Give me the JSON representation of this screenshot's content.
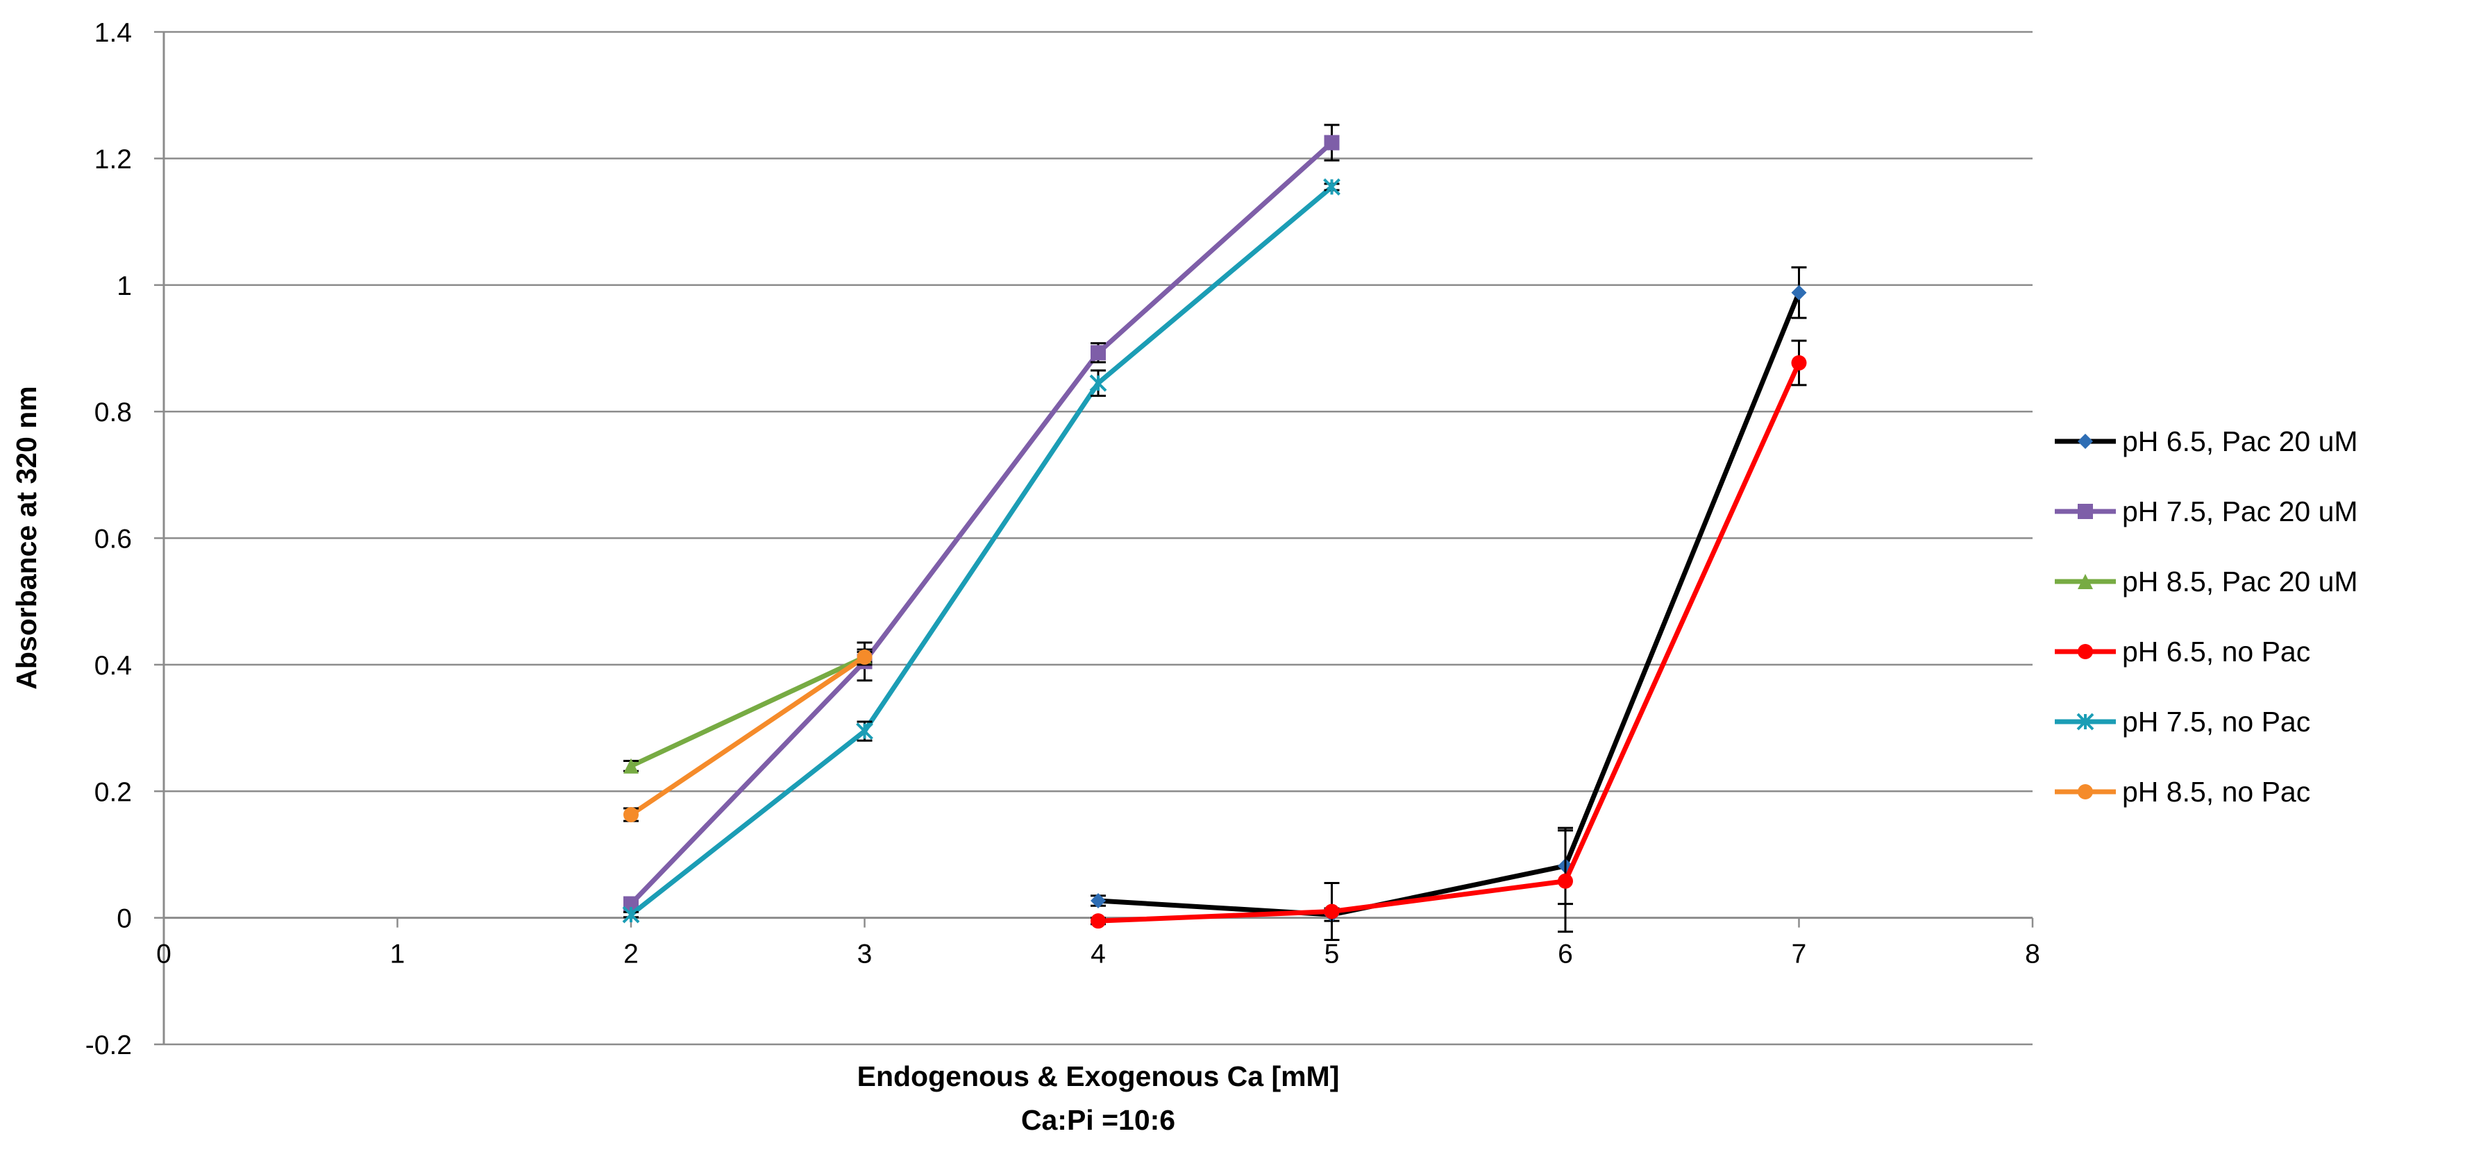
{
  "chart_data": {
    "type": "line",
    "title": "",
    "xlabel": "Endogenous & Exogenous Ca [mM]",
    "xlabel_line2": "Ca:Pi =10:6",
    "ylabel": "Absorbance at 320 nm",
    "xlim": [
      0,
      8
    ],
    "ylim": [
      -0.2,
      1.4
    ],
    "x_ticks": [
      0,
      1,
      2,
      3,
      4,
      5,
      6,
      7,
      8
    ],
    "y_ticks": [
      -0.2,
      0,
      0.2,
      0.4,
      0.6,
      0.8,
      1,
      1.2,
      1.4
    ],
    "x_tick_labels": [
      "0",
      "1",
      "2",
      "3",
      "4",
      "5",
      "6",
      "7",
      "8"
    ],
    "y_tick_labels": [
      "-0.2",
      "0",
      "0.2",
      "0.4",
      "0.6",
      "0.8",
      "1",
      "1.2",
      "1.4"
    ],
    "grid": "horizontal",
    "legend_position": "right",
    "series": [
      {
        "name": "pH 6.5, Pac 20 uM",
        "color": "#000000",
        "marker": "diamond",
        "marker_color": "#2e6db4",
        "x": [
          4,
          5,
          6,
          7
        ],
        "y": [
          0.027,
          0.005,
          0.082,
          0.988
        ],
        "err": [
          0.008,
          0.01,
          0.06,
          0.04
        ]
      },
      {
        "name": "pH 7.5, Pac 20 uM",
        "color": "#7e5ea8",
        "marker": "square",
        "marker_color": "#7e5ea8",
        "x": [
          2,
          3,
          4,
          5
        ],
        "y": [
          0.022,
          0.405,
          0.893,
          1.225
        ],
        "err": [
          0.006,
          0.03,
          0.015,
          0.028
        ]
      },
      {
        "name": "pH 8.5, Pac 20 uM",
        "color": "#77ab43",
        "marker": "triangle",
        "marker_color": "#77ab43",
        "x": [
          2,
          3
        ],
        "y": [
          0.24,
          0.412
        ],
        "err": [
          0.008,
          0.008
        ]
      },
      {
        "name": "pH 6.5, no Pac",
        "color": "#ff0000",
        "marker": "circle",
        "marker_color": "#ff0000",
        "x": [
          4,
          5,
          6,
          7
        ],
        "y": [
          -0.005,
          0.01,
          0.058,
          0.877
        ],
        "err": [
          0.005,
          0.045,
          0.08,
          0.035
        ]
      },
      {
        "name": "pH 7.5, no Pac",
        "color": "#1b9db5",
        "marker": "x",
        "marker_color": "#1b9db5",
        "x": [
          2,
          3,
          4,
          5
        ],
        "y": [
          0.005,
          0.295,
          0.845,
          1.155
        ],
        "err": [
          0.004,
          0.015,
          0.02,
          0.005
        ]
      },
      {
        "name": "pH 8.5, no Pac",
        "color": "#f58b2a",
        "marker": "circle",
        "marker_color": "#f58b2a",
        "x": [
          2,
          3
        ],
        "y": [
          0.163,
          0.412
        ],
        "err": [
          0.01,
          0.012
        ]
      }
    ]
  }
}
